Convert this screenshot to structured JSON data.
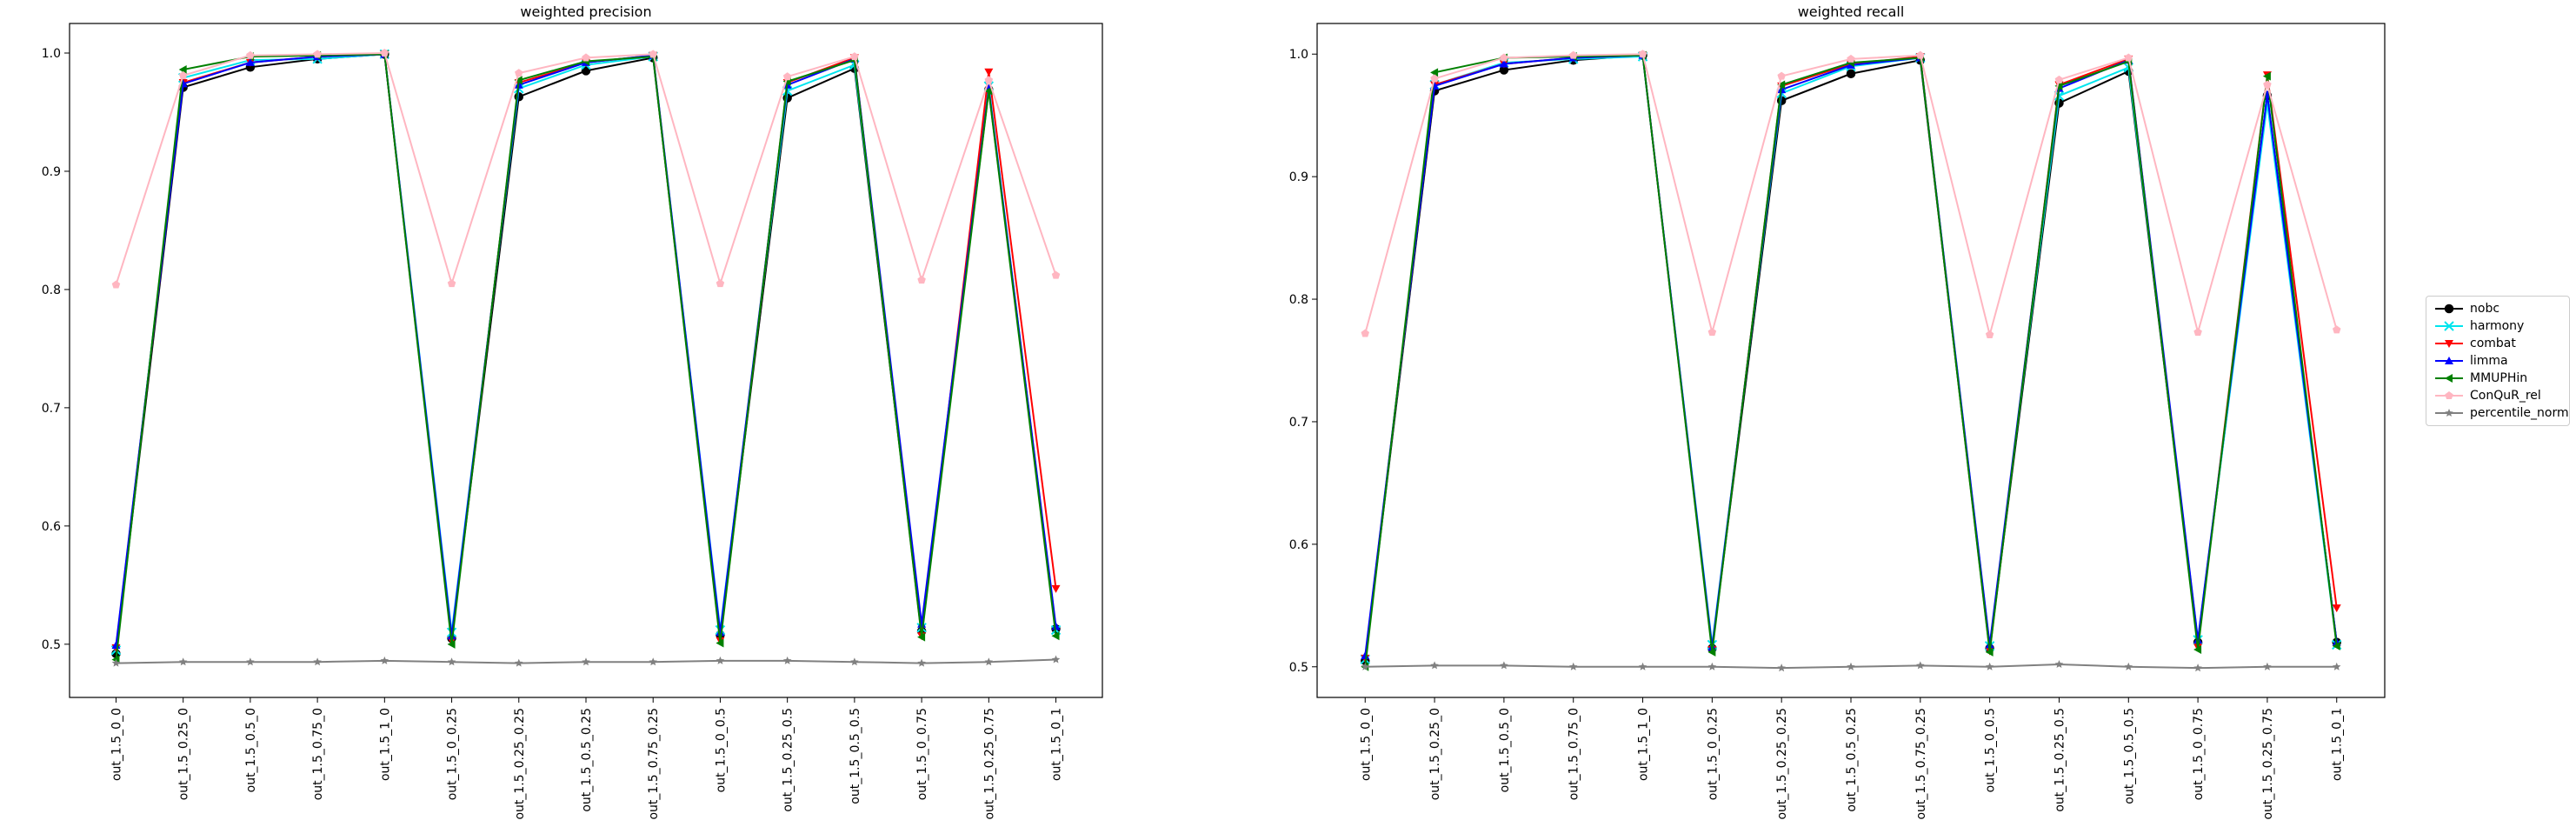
{
  "chart_data": [
    {
      "type": "line",
      "title": "weighted precision",
      "xlabel": "",
      "ylabel": "",
      "ylim": [
        0.455,
        1.025
      ],
      "yticks": [
        0.5,
        0.6,
        0.7,
        0.8,
        0.9,
        1.0
      ],
      "ytick_labels": [
        "0.5",
        "0.6",
        "0.7",
        "0.8",
        "0.9",
        "1.0"
      ],
      "grid": false,
      "categories": [
        "out_1.5_0_0",
        "out_1.5_0.25_0",
        "out_1.5_0.5_0",
        "out_1.5_0.75_0",
        "out_1.5_1_0",
        "out_1.5_0_0.25",
        "out_1.5_0.25_0.25",
        "out_1.5_0.5_0.25",
        "out_1.5_0.75_0.25",
        "out_1.5_0_0.5",
        "out_1.5_0.25_0.5",
        "out_1.5_0.5_0.5",
        "out_1.5_0_0.75",
        "out_1.5_0.25_0.75",
        "out_1.5_0_1"
      ],
      "series": [
        {
          "name": "nobc",
          "values": [
            0.492,
            0.971,
            0.988,
            0.995,
            0.999,
            0.505,
            0.963,
            0.985,
            0.996,
            0.508,
            0.962,
            0.987,
            0.511,
            0.969,
            0.513
          ]
        },
        {
          "name": "harmony",
          "values": [
            0.495,
            0.979,
            0.994,
            0.995,
            0.999,
            0.51,
            0.97,
            0.99,
            0.997,
            0.512,
            0.968,
            0.99,
            0.514,
            0.972,
            0.512
          ]
        },
        {
          "name": "combat",
          "values": [
            0.497,
            0.975,
            0.992,
            0.997,
            0.999,
            0.503,
            0.975,
            0.992,
            0.998,
            0.503,
            0.975,
            0.996,
            0.507,
            0.984,
            0.547
          ]
        },
        {
          "name": "limma",
          "values": [
            0.499,
            0.974,
            0.992,
            0.997,
            0.999,
            0.507,
            0.973,
            0.992,
            0.998,
            0.51,
            0.973,
            0.995,
            0.517,
            0.97,
            0.515
          ]
        },
        {
          "name": "MMUPHin",
          "values": [
            0.487,
            0.986,
            0.997,
            0.998,
            0.999,
            0.5,
            0.977,
            0.993,
            0.997,
            0.501,
            0.976,
            0.994,
            0.506,
            0.968,
            0.507
          ]
        },
        {
          "name": "ConQuR_rel",
          "values": [
            0.804,
            0.981,
            0.998,
            0.999,
            1.0,
            0.805,
            0.983,
            0.996,
            0.999,
            0.805,
            0.98,
            0.997,
            0.808,
            0.977,
            0.812
          ]
        },
        {
          "name": "percentile_norm",
          "values": [
            0.484,
            0.485,
            0.485,
            0.485,
            0.486,
            0.485,
            0.484,
            0.485,
            0.485,
            0.486,
            0.486,
            0.485,
            0.484,
            0.485,
            0.487
          ]
        }
      ]
    },
    {
      "type": "line",
      "title": "weighted recall",
      "xlabel": "",
      "ylabel": "",
      "ylim": [
        0.475,
        1.025
      ],
      "yticks": [
        0.5,
        0.6,
        0.7,
        0.8,
        0.9,
        1.0
      ],
      "ytick_labels": [
        "0.5",
        "0.6",
        "0.7",
        "0.8",
        "0.9",
        "1.0"
      ],
      "grid": false,
      "categories": [
        "out_1.5_0_0",
        "out_1.5_0.25_0",
        "out_1.5_0.5_0",
        "out_1.5_0.75_0",
        "out_1.5_1_0",
        "out_1.5_0_0.25",
        "out_1.5_0.25_0.25",
        "out_1.5_0.5_0.25",
        "out_1.5_0.75_0.25",
        "out_1.5_0_0.5",
        "out_1.5_0.25_0.5",
        "out_1.5_0.5_0.5",
        "out_1.5_0_0.75",
        "out_1.5_0.25_0.75",
        "out_1.5_0_1"
      ],
      "series": [
        {
          "name": "nobc",
          "values": [
            0.505,
            0.97,
            0.987,
            0.995,
            0.999,
            0.515,
            0.962,
            0.984,
            0.995,
            0.515,
            0.96,
            0.986,
            0.52,
            0.966,
            0.52
          ]
        },
        {
          "name": "harmony",
          "values": [
            0.506,
            0.975,
            0.993,
            0.996,
            0.998,
            0.518,
            0.968,
            0.99,
            0.997,
            0.517,
            0.966,
            0.989,
            0.522,
            0.96,
            0.518
          ]
        },
        {
          "name": "combat",
          "values": [
            0.507,
            0.975,
            0.992,
            0.997,
            0.999,
            0.514,
            0.974,
            0.992,
            0.998,
            0.513,
            0.975,
            0.996,
            0.516,
            0.983,
            0.548
          ]
        },
        {
          "name": "limma",
          "values": [
            0.509,
            0.974,
            0.992,
            0.997,
            0.999,
            0.516,
            0.971,
            0.991,
            0.997,
            0.518,
            0.972,
            0.995,
            0.522,
            0.967,
            0.52
          ]
        },
        {
          "name": "MMUPHin",
          "values": [
            0.5,
            0.985,
            0.997,
            0.998,
            0.999,
            0.512,
            0.975,
            0.993,
            0.997,
            0.512,
            0.974,
            0.994,
            0.514,
            0.982,
            0.517
          ]
        },
        {
          "name": "ConQuR_rel",
          "values": [
            0.772,
            0.98,
            0.997,
            0.999,
            1.0,
            0.773,
            0.982,
            0.996,
            0.999,
            0.771,
            0.979,
            0.997,
            0.773,
            0.975,
            0.775
          ]
        },
        {
          "name": "percentile_norm",
          "values": [
            0.5,
            0.501,
            0.501,
            0.5,
            0.5,
            0.5,
            0.499,
            0.5,
            0.501,
            0.5,
            0.502,
            0.5,
            0.499,
            0.5,
            0.5
          ]
        }
      ]
    }
  ],
  "legend": {
    "placement": "right",
    "items": [
      {
        "name": "nobc",
        "color": "#000000",
        "marker": "circle"
      },
      {
        "name": "harmony",
        "color": "#00e5ee",
        "marker": "x"
      },
      {
        "name": "combat",
        "color": "#ff0000",
        "marker": "triangle-down"
      },
      {
        "name": "limma",
        "color": "#0000ff",
        "marker": "triangle-up"
      },
      {
        "name": "MMUPHin",
        "color": "#008000",
        "marker": "triangle-left"
      },
      {
        "name": "ConQuR_rel",
        "color": "#ffb6c1",
        "marker": "pentagon"
      },
      {
        "name": "percentile_norm",
        "color": "#808080",
        "marker": "star"
      }
    ]
  }
}
